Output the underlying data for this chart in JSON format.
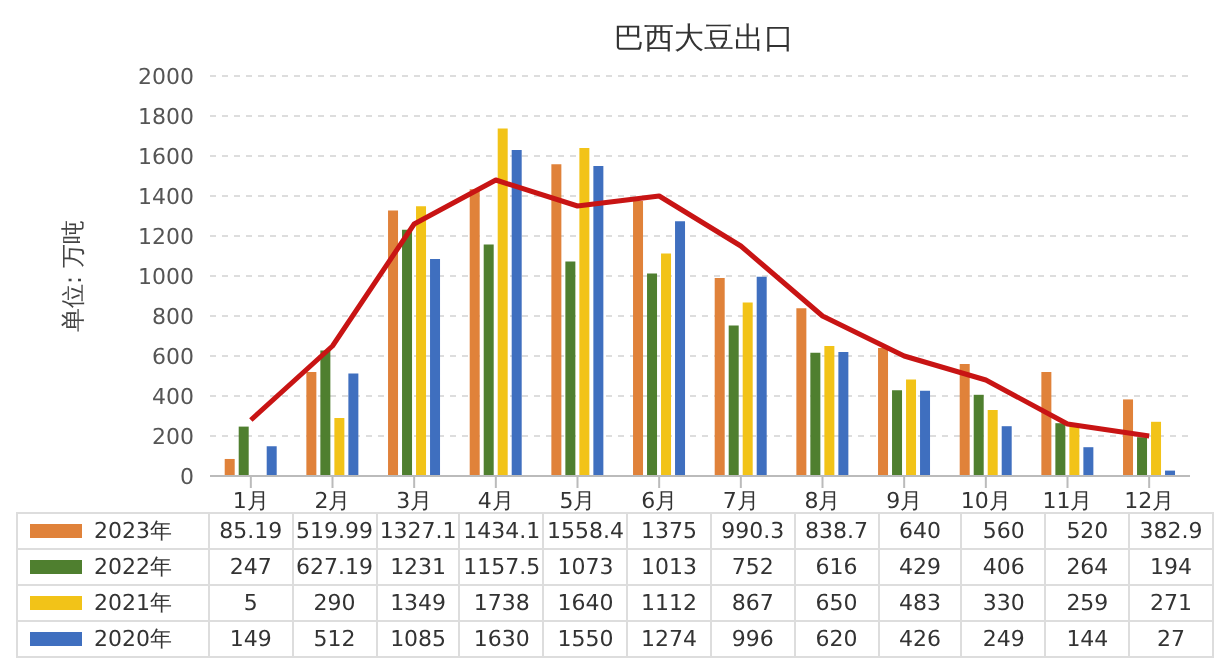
{
  "chart_data": {
    "type": "bar",
    "title": "巴西大豆出口",
    "ylabel": "单位: 万吨",
    "categories": [
      "1月",
      "2月",
      "3月",
      "4月",
      "5月",
      "6月",
      "7月",
      "8月",
      "9月",
      "10月",
      "11月",
      "12月"
    ],
    "series": [
      {
        "name": "2023年",
        "color": "#e0823a",
        "values": [
          85.19,
          519.99,
          1327.1,
          1434.1,
          1558.4,
          1375,
          990.3,
          838.7,
          640,
          560,
          520,
          382.9
        ],
        "value_labels": [
          "85.19",
          "519.99",
          "1327.1",
          "1434.1",
          "1558.4",
          "1375",
          "990.3",
          "838.7",
          "640",
          "560",
          "520",
          "382.9"
        ]
      },
      {
        "name": "2022年",
        "color": "#4f7f2f",
        "values": [
          247,
          627.19,
          1231,
          1157.5,
          1073,
          1013,
          752,
          616,
          429,
          406,
          264,
          194
        ],
        "value_labels": [
          "247",
          "627.19",
          "1231",
          "1157.5",
          "1073",
          "1013",
          "752",
          "616",
          "429",
          "406",
          "264",
          "194"
        ]
      },
      {
        "name": "2021年",
        "color": "#f2c318",
        "values": [
          5,
          290,
          1349,
          1738,
          1640,
          1112,
          867,
          650,
          483,
          330,
          259,
          271
        ],
        "value_labels": [
          "5",
          "290",
          "1349",
          "1738",
          "1640",
          "1112",
          "867",
          "650",
          "483",
          "330",
          "259",
          "271"
        ]
      },
      {
        "name": "2020年",
        "color": "#3f6fbf",
        "values": [
          149,
          512,
          1085,
          1630,
          1550,
          1274,
          996,
          620,
          426,
          249,
          144,
          27
        ],
        "value_labels": [
          "149",
          "512",
          "1085",
          "1630",
          "1550",
          "1274",
          "996",
          "620",
          "426",
          "249",
          "144",
          "27"
        ]
      },
      {
        "type": "line",
        "color": "#c81414",
        "values": [
          280,
          650,
          1260,
          1480,
          1350,
          1400,
          1150,
          800,
          600,
          480,
          260,
          200
        ]
      }
    ],
    "ylim": [
      0,
      2000
    ],
    "yticks": [
      0,
      200,
      400,
      600,
      800,
      1000,
      1200,
      1400,
      1600,
      1800,
      2000
    ],
    "grid": "y",
    "legend": "bottom",
    "marker": "none"
  }
}
